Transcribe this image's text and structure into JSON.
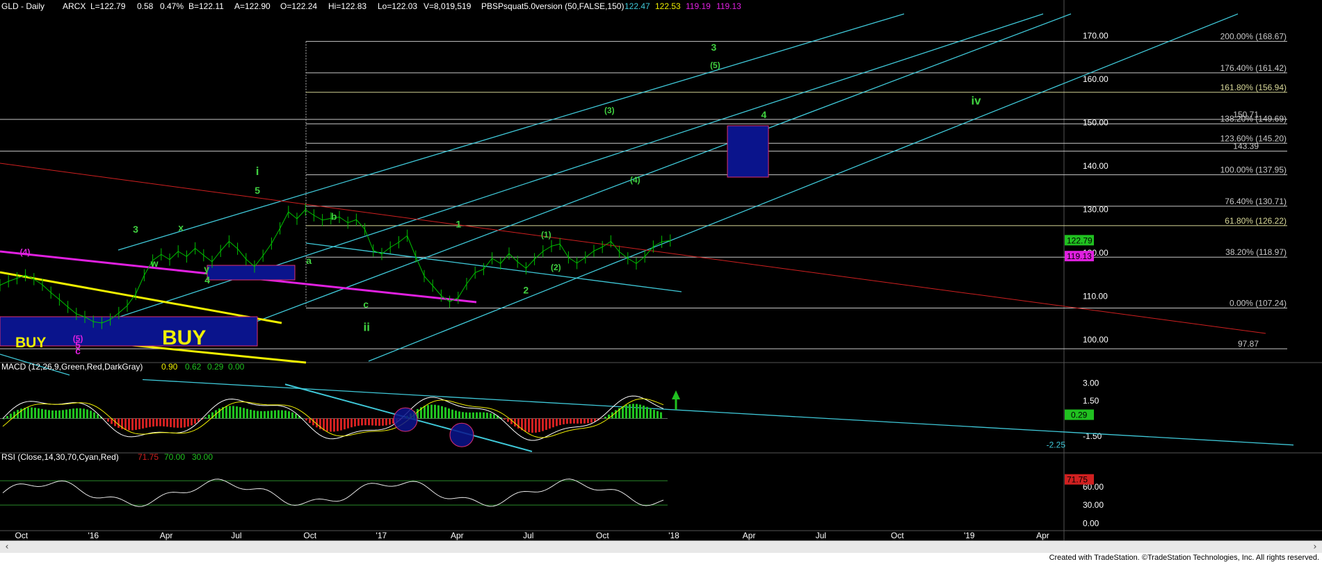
{
  "header": {
    "symbol": "GLD - Daily",
    "exchange": "ARCX",
    "last": "L=122.79",
    "change": "0.58",
    "change_pct": "0.47%",
    "bid": "B=122.11",
    "ask": "A=122.90",
    "open": "O=122.24",
    "high": "Hi=122.83",
    "low": "Lo=122.03",
    "volume": "V=8,019,519",
    "indicator": "PBSPsquat5.0version (50,FALSE,150)",
    "ind_values": [
      "122.47",
      "122.53",
      "119.19",
      "119.13"
    ]
  },
  "colors": {
    "price": "#00c000",
    "channel": "#3fc8d8",
    "fib_line": "#c8c8c8",
    "fib_618": "#d8d898",
    "red_trend": "#d02020",
    "magenta": "#e020e0",
    "yellow": "#f0f000",
    "wave_green": "#40d040",
    "box_blue": "#0a148c",
    "box_border": "#e03070",
    "macd_red": "#d02020",
    "macd_green": "#20c020",
    "rsi_line": "#e8e8e8"
  },
  "chart_data": [
    {
      "type": "line",
      "title": "GLD - Daily",
      "ylim": [
        95,
        175
      ],
      "y_ticks": [
        "170.00",
        "160.00",
        "150.00",
        "140.00",
        "130.00",
        "120.00",
        "110.00",
        "100.00"
      ],
      "price_tag": "122.79",
      "price_tag2": "119.13",
      "fib_levels": [
        {
          "label": "200.00% (168.67)",
          "value": 168.67
        },
        {
          "label": "176.40% (161.42)",
          "value": 161.42
        },
        {
          "label": "161.80% (156.94)",
          "value": 156.94
        },
        {
          "label": "138.20% (149.69)",
          "value": 149.69
        },
        {
          "label": "123.60% (145.20)",
          "value": 145.2
        },
        {
          "label": "100.00% (137.95)",
          "value": 137.95
        },
        {
          "label": "76.40% (130.71)",
          "value": 130.71
        },
        {
          "label": "61.80% (126.22)",
          "value": 126.22
        },
        {
          "label": "38.20% (118.97)",
          "value": 118.97
        },
        {
          "label": "0.00% (107.24)",
          "value": 107.24
        }
      ],
      "extra_levels": [
        {
          "label": "150.71",
          "value": 150.71
        },
        {
          "label": "143.39",
          "value": 143.39
        },
        {
          "label": "97.87",
          "value": 97.87
        }
      ],
      "x_ticks": [
        "Oct",
        "'16",
        "Apr",
        "Jul",
        "Oct",
        "'17",
        "Apr",
        "Jul",
        "Oct",
        "'18",
        "Apr",
        "Jul",
        "Oct",
        "'19",
        "Apr"
      ],
      "series": [
        {
          "values": [
            [
              0,
              112.5
            ],
            [
              10,
              113.4
            ],
            [
              20,
              114.1
            ],
            [
              30,
              114.8
            ],
            [
              40,
              113.9
            ],
            [
              50,
              112.6
            ],
            [
              60,
              110.8
            ],
            [
              70,
              109.2
            ],
            [
              80,
              107.5
            ],
            [
              90,
              105.9
            ],
            [
              100,
              105.2
            ],
            [
              110,
              104.1
            ],
            [
              120,
              103.8
            ],
            [
              130,
              104.6
            ],
            [
              140,
              106.1
            ],
            [
              150,
              107.8
            ],
            [
              160,
              110.5
            ],
            [
              170,
              114.8
            ],
            [
              180,
              118.2
            ],
            [
              190,
              119.6
            ],
            [
              200,
              118.4
            ],
            [
              210,
              120.3
            ],
            [
              220,
              119.1
            ],
            [
              230,
              121.0
            ],
            [
              240,
              119.4
            ],
            [
              250,
              117.9
            ],
            [
              260,
              120.4
            ],
            [
              270,
              122.6
            ],
            [
              280,
              120.9
            ],
            [
              290,
              118.5
            ],
            [
              300,
              116.8
            ],
            [
              310,
              119.3
            ],
            [
              320,
              122.1
            ],
            [
              330,
              125.6
            ],
            [
              340,
              129.4
            ],
            [
              350,
              127.8
            ],
            [
              360,
              129.9
            ],
            [
              370,
              128.6
            ],
            [
              380,
              127.5
            ],
            [
              390,
              127.9
            ],
            [
              400,
              128.2
            ],
            [
              410,
              126.9
            ],
            [
              420,
              127.6
            ],
            [
              430,
              125.4
            ],
            [
              440,
              120.5
            ],
            [
              450,
              119.7
            ],
            [
              460,
              121.2
            ],
            [
              470,
              122.4
            ],
            [
              480,
              123.9
            ],
            [
              490,
              119.1
            ],
            [
              500,
              114.6
            ],
            [
              510,
              112.4
            ],
            [
              520,
              110.1
            ],
            [
              530,
              108.7
            ],
            [
              540,
              109.6
            ],
            [
              550,
              112.8
            ],
            [
              560,
              115.4
            ],
            [
              570,
              116.2
            ],
            [
              580,
              118.7
            ],
            [
              590,
              117.5
            ],
            [
              600,
              119.8
            ],
            [
              610,
              117.9
            ],
            [
              620,
              116.4
            ],
            [
              630,
              118.5
            ],
            [
              640,
              120.3
            ],
            [
              650,
              121.5
            ],
            [
              660,
              122.0
            ],
            [
              670,
              118.9
            ],
            [
              680,
              117.6
            ],
            [
              690,
              118.9
            ],
            [
              700,
              120.4
            ],
            [
              710,
              121.3
            ],
            [
              720,
              122.6
            ],
            [
              730,
              120.2
            ],
            [
              740,
              118.7
            ],
            [
              750,
              117.5
            ],
            [
              760,
              119.1
            ],
            [
              770,
              121.4
            ],
            [
              780,
              122.5
            ],
            [
              790,
              122.8
            ]
          ]
        }
      ],
      "wave_labels": [
        {
          "text": "(4)",
          "color": "magenta",
          "x": 36,
          "y": 119.5
        },
        {
          "text": "(5)",
          "color": "magenta",
          "x": 112,
          "y": 99.6
        },
        {
          "text": "5",
          "color": "magenta",
          "x": 112,
          "y": 98.0
        },
        {
          "text": "c",
          "color": "magenta",
          "x": 112,
          "y": 96.6
        },
        {
          "text": "3",
          "color": "green",
          "x": 195,
          "y": 124.6
        },
        {
          "text": "x",
          "color": "green",
          "x": 260,
          "y": 125.0
        },
        {
          "text": "w",
          "color": "green",
          "x": 222,
          "y": 116.8
        },
        {
          "text": "y",
          "color": "green",
          "x": 297,
          "y": 115.5
        },
        {
          "text": "4",
          "color": "green",
          "x": 298,
          "y": 112.9
        },
        {
          "text": "i",
          "color": "green",
          "x": 370,
          "y": 137.9
        },
        {
          "text": "5",
          "color": "green",
          "x": 370,
          "y": 133.6
        },
        {
          "text": "b",
          "color": "green",
          "x": 480,
          "y": 127.6
        },
        {
          "text": "a",
          "color": "green",
          "x": 444,
          "y": 117.4
        },
        {
          "text": "c",
          "color": "green",
          "x": 526,
          "y": 107.3
        },
        {
          "text": "ii",
          "color": "green",
          "x": 527,
          "y": 102.0
        },
        {
          "text": "1",
          "color": "green",
          "x": 659,
          "y": 125.8
        },
        {
          "text": "2",
          "color": "green",
          "x": 756,
          "y": 110.6
        },
        {
          "text": "(1)",
          "color": "green",
          "x": 785,
          "y": 123.5
        },
        {
          "text": "(2)",
          "color": "green",
          "x": 799,
          "y": 116.0
        },
        {
          "text": "(3)",
          "color": "green",
          "x": 876,
          "y": 152.1
        },
        {
          "text": "(4)",
          "color": "green",
          "x": 913,
          "y": 136.1
        },
        {
          "text": "3",
          "color": "green",
          "x": 1026,
          "y": 166.5
        },
        {
          "text": "(5)",
          "color": "green",
          "x": 1028,
          "y": 162.5
        },
        {
          "text": "4",
          "color": "green",
          "x": 1098,
          "y": 151.0
        },
        {
          "text": "iv",
          "color": "green",
          "x": 1403,
          "y": 154.1
        }
      ],
      "buy_labels": [
        "BUY",
        "BUY"
      ]
    },
    {
      "type": "line",
      "title": "MACD (12,26,9,Green,Red,DarkGray)",
      "header_values": [
        "0.90",
        "0.62",
        "0.29",
        "0.00"
      ],
      "ylim": [
        -2.8,
        3.8
      ],
      "y_ticks": [
        "3.00",
        "1.50",
        "-1.50"
      ],
      "tags": [
        "0.29",
        "-2.25"
      ]
    },
    {
      "type": "line",
      "title": "RSI (Close,14,30,70,Cyan,Red)",
      "header_values": [
        "71.75",
        "70.00",
        "30.00"
      ],
      "ylim": [
        -10,
        100
      ],
      "y_ticks": [
        "60.00",
        "30.00",
        "0.00"
      ],
      "tag": "71.75"
    }
  ],
  "footer": {
    "text": "Created with TradeStation. ©TradeStation Technologies, Inc. All rights reserved."
  }
}
